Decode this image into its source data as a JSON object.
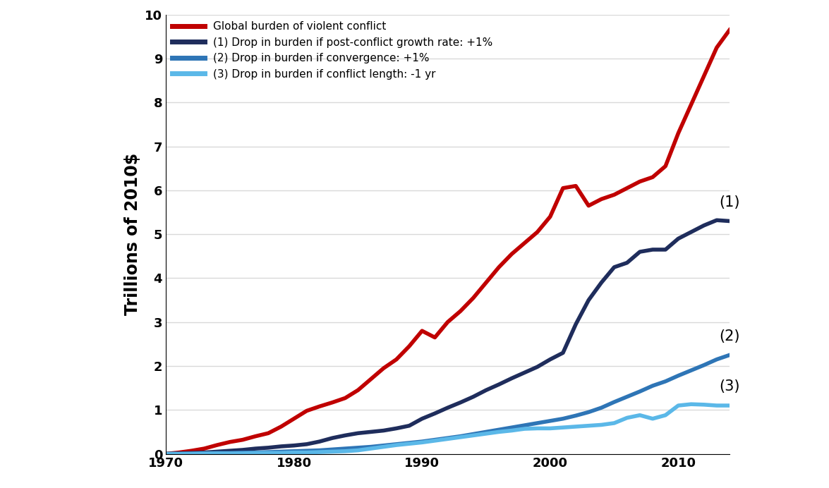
{
  "chart_data": {
    "type": "line",
    "y_label": "Trillions of 2010$",
    "x": [
      1970,
      1971,
      1972,
      1973,
      1974,
      1975,
      1976,
      1977,
      1978,
      1979,
      1980,
      1981,
      1982,
      1983,
      1984,
      1985,
      1986,
      1987,
      1988,
      1989,
      1990,
      1991,
      1992,
      1993,
      1994,
      1995,
      1996,
      1997,
      1998,
      1999,
      2000,
      2001,
      2002,
      2003,
      2004,
      2005,
      2006,
      2007,
      2008,
      2009,
      2010,
      2011,
      2012,
      2013,
      2014
    ],
    "series": [
      {
        "name": "Global burden of violent conflict",
        "color": "#c00000",
        "values": [
          0,
          0.03,
          0.07,
          0.12,
          0.2,
          0.27,
          0.32,
          0.4,
          0.47,
          0.62,
          0.8,
          0.98,
          1.08,
          1.17,
          1.27,
          1.45,
          1.7,
          1.95,
          2.15,
          2.45,
          2.8,
          2.65,
          3.0,
          3.25,
          3.55,
          3.9,
          4.25,
          4.55,
          4.8,
          5.05,
          5.4,
          6.05,
          6.1,
          5.65,
          5.8,
          5.9,
          6.05,
          6.2,
          6.3,
          6.55,
          7.3,
          7.95,
          8.6,
          9.25,
          9.65
        ]
      },
      {
        "name": "(1) Drop in burden if post-conflict growth rate: +1%",
        "color": "#1f2d5c",
        "annotation": "(1)",
        "values": [
          0,
          0.01,
          0.02,
          0.03,
          0.05,
          0.07,
          0.09,
          0.12,
          0.14,
          0.17,
          0.19,
          0.22,
          0.28,
          0.36,
          0.42,
          0.47,
          0.5,
          0.53,
          0.58,
          0.64,
          0.8,
          0.92,
          1.05,
          1.17,
          1.3,
          1.45,
          1.58,
          1.72,
          1.85,
          1.98,
          2.15,
          2.3,
          2.95,
          3.5,
          3.9,
          4.25,
          4.35,
          4.6,
          4.65,
          4.65,
          4.9,
          5.05,
          5.2,
          5.32,
          5.3
        ]
      },
      {
        "name": "(2) Drop in burden if convergence: +1%",
        "color": "#2e75b6",
        "annotation": "(2)",
        "values": [
          0,
          0,
          0.01,
          0.01,
          0.02,
          0.02,
          0.03,
          0.03,
          0.04,
          0.05,
          0.06,
          0.07,
          0.08,
          0.1,
          0.12,
          0.14,
          0.16,
          0.19,
          0.22,
          0.25,
          0.28,
          0.32,
          0.36,
          0.4,
          0.45,
          0.5,
          0.55,
          0.6,
          0.65,
          0.7,
          0.75,
          0.8,
          0.87,
          0.95,
          1.05,
          1.18,
          1.3,
          1.42,
          1.55,
          1.65,
          1.78,
          1.9,
          2.02,
          2.15,
          2.25
        ]
      },
      {
        "name": "(3) Drop in burden if conflict length: -1 yr",
        "color": "#5bb8e8",
        "annotation": "(3)",
        "values": [
          0,
          0,
          0,
          0.01,
          0.01,
          0.01,
          0.01,
          0.02,
          0.02,
          0.02,
          0.03,
          0.03,
          0.04,
          0.05,
          0.06,
          0.08,
          0.12,
          0.16,
          0.2,
          0.23,
          0.26,
          0.3,
          0.34,
          0.38,
          0.42,
          0.46,
          0.5,
          0.53,
          0.57,
          0.58,
          0.58,
          0.6,
          0.62,
          0.64,
          0.66,
          0.7,
          0.82,
          0.88,
          0.8,
          0.88,
          1.1,
          1.13,
          1.12,
          1.1,
          1.1
        ]
      }
    ],
    "xlim": [
      1970,
      2014
    ],
    "xticks": [
      1970,
      1980,
      1990,
      2000,
      2010
    ],
    "ylim": [
      0,
      10
    ],
    "yticks": [
      0,
      1,
      2,
      3,
      4,
      5,
      6,
      7,
      8,
      9,
      10
    ],
    "grid": true,
    "legend": "upper left"
  }
}
